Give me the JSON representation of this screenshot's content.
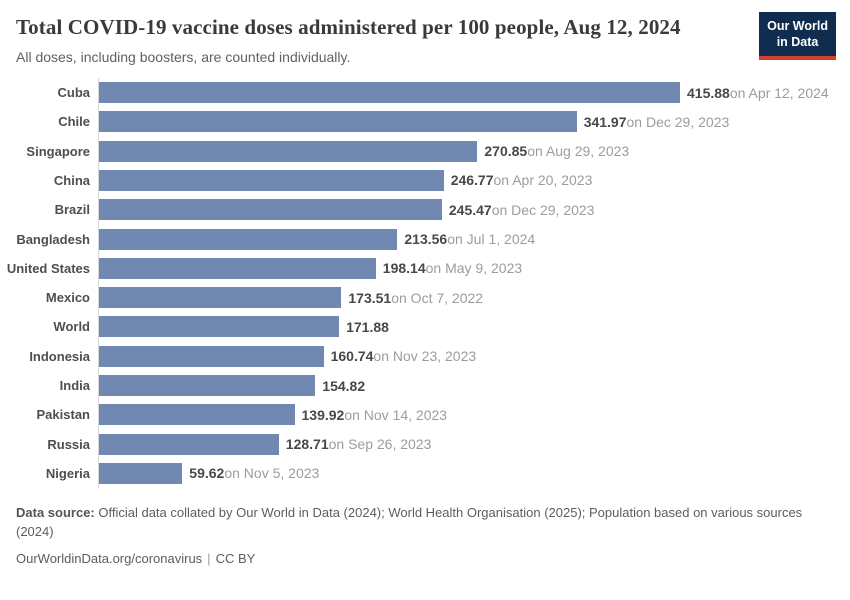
{
  "header": {
    "title": "Total COVID-19 vaccine doses administered per 100 people, Aug 12, 2024",
    "subtitle": "All doses, including boosters, are counted individually.",
    "logo_line1": "Our World",
    "logo_line2": "in Data"
  },
  "chart_data": {
    "type": "bar",
    "orientation": "horizontal",
    "title": "Total COVID-19 vaccine doses administered per 100 people, Aug 12, 2024",
    "xlim": [
      0,
      415.88
    ],
    "grid": false,
    "legend": "none",
    "bar_color": "#7189b0",
    "axis_line_color": "#d9d9d9",
    "categories": [
      "Cuba",
      "Chile",
      "Singapore",
      "China",
      "Brazil",
      "Bangladesh",
      "United States",
      "Mexico",
      "World",
      "Indonesia",
      "India",
      "Pakistan",
      "Russia",
      "Nigeria"
    ],
    "values": [
      415.88,
      341.97,
      270.85,
      246.77,
      245.47,
      213.56,
      198.14,
      173.51,
      171.88,
      160.74,
      154.82,
      139.92,
      128.71,
      59.62
    ],
    "value_labels": [
      "415.88",
      "341.97",
      "270.85",
      "246.77",
      "245.47",
      "213.56",
      "198.14",
      "173.51",
      "171.88",
      "160.74",
      "154.82",
      "139.92",
      "128.71",
      "59.62"
    ],
    "date_annotations": [
      "on Apr 12, 2024",
      "on Dec 29, 2023",
      "on Aug 29, 2023",
      "on Apr 20, 2023",
      "on Dec 29, 2023",
      "on Jul 1, 2024",
      "on May 9, 2023",
      "on Oct 7, 2022",
      "",
      "on Nov 23, 2023",
      "",
      "on Nov 14, 2023",
      "on Sep 26, 2023",
      "on Nov 5, 2023"
    ]
  },
  "footer": {
    "source_label": "Data source:",
    "source_text": " Official data collated by Our World in Data (2024); World Health Organisation (2025); Population based on various sources (2024)",
    "link": "OurWorldinData.org/coronavirus",
    "separator": "|",
    "license": "CC BY"
  }
}
